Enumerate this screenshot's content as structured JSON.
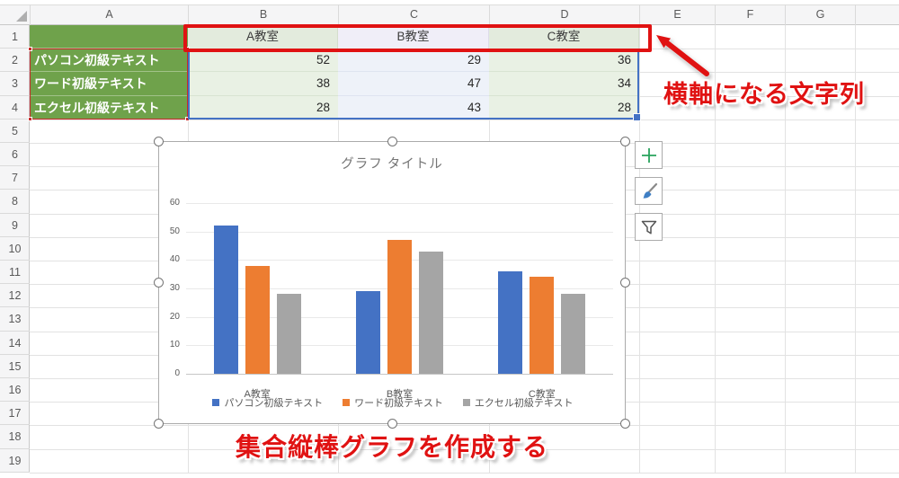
{
  "sheet": {
    "column_headers": [
      "A",
      "B",
      "C",
      "D",
      "E",
      "F",
      "G"
    ],
    "row_headers": [
      "1",
      "2",
      "3",
      "4",
      "5",
      "6",
      "7",
      "8",
      "9",
      "10",
      "11",
      "12",
      "13",
      "14",
      "15",
      "16",
      "17",
      "18",
      "19"
    ],
    "table": {
      "col_titles": [
        "A教室",
        "B教室",
        "C教室"
      ],
      "row_titles": [
        "パソコン初級テキスト",
        "ワード初級テキスト",
        "エクセル初級テキスト"
      ],
      "values": [
        [
          52,
          29,
          36
        ],
        [
          38,
          47,
          34
        ],
        [
          28,
          43,
          28
        ]
      ]
    }
  },
  "annotations": {
    "axis_note": "横軸になる文字列",
    "bottom_note": "集合縦棒グラフを作成する",
    "red": "#E01212"
  },
  "chart_buttons": {
    "elements_icon": "plus-icon",
    "styles_icon": "paintbrush-icon",
    "filters_icon": "funnel-icon"
  },
  "chart_data": {
    "type": "bar",
    "title": "グラフ タイトル",
    "categories": [
      "A教室",
      "B教室",
      "C教室"
    ],
    "series": [
      {
        "name": "パソコン初級テキスト",
        "color": "#4472C4",
        "values": [
          52,
          29,
          36
        ]
      },
      {
        "name": "ワード初級テキスト",
        "color": "#ED7D31",
        "values": [
          38,
          47,
          34
        ]
      },
      {
        "name": "エクセル初級テキスト",
        "color": "#A5A5A5",
        "values": [
          28,
          43,
          28
        ]
      }
    ],
    "xlabel": "",
    "ylabel": "",
    "ylim": [
      0,
      60
    ],
    "yticks": [
      0,
      10,
      20,
      30,
      40,
      50,
      60
    ],
    "grid": true,
    "legend_position": "bottom"
  },
  "colors": {
    "excel_green_fill": "#6FA24B",
    "selection_blue": "#4472C4",
    "annotation_red": "#E01212"
  }
}
